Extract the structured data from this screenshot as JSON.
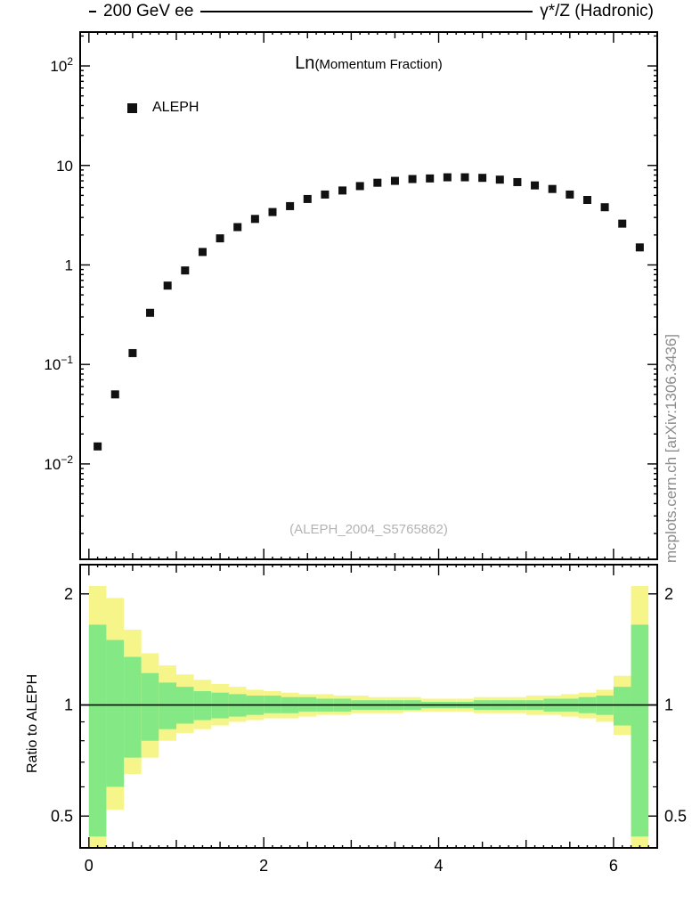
{
  "header": {
    "left": "200 GeV ee",
    "right": "γ*/Z (Hadronic)"
  },
  "plot": {
    "title_main": "Ln",
    "title_sub": "(Momentum Fraction)",
    "legend_label": "ALEPH",
    "watermark": "(ALEPH_2004_S5765862)",
    "side_text": "mcplots.cern.ch [arXiv:1306.3436]",
    "ratio_ylabel": "Ratio to ALEPH"
  },
  "colors": {
    "yellow": "#f6f58a",
    "green": "#84e984",
    "marker": "#111111",
    "axis": "#000000"
  },
  "chart_data": [
    {
      "type": "scatter",
      "title": "Ln(Momentum Fraction)",
      "legend": [
        "ALEPH"
      ],
      "yscale": "log",
      "xlim": [
        -0.1,
        6.5
      ],
      "ylim": [
        0.0011,
        219
      ],
      "xticks": [
        0,
        2,
        4,
        6
      ],
      "ytick_exponents": [
        -2,
        -1,
        0,
        1,
        2
      ],
      "x": [
        0.1,
        0.3,
        0.5,
        0.7,
        0.9,
        1.1,
        1.3,
        1.5,
        1.7,
        1.9,
        2.1,
        2.3,
        2.5,
        2.7,
        2.9,
        3.1,
        3.3,
        3.5,
        3.7,
        3.9,
        4.1,
        4.3,
        4.5,
        4.7,
        4.9,
        5.1,
        5.3,
        5.5,
        5.7,
        5.9,
        6.1,
        6.3
      ],
      "y": [
        0.015,
        0.05,
        0.13,
        0.33,
        0.62,
        0.88,
        1.35,
        1.85,
        2.4,
        2.9,
        3.4,
        3.9,
        4.6,
        5.1,
        5.6,
        6.2,
        6.7,
        7.0,
        7.3,
        7.4,
        7.6,
        7.6,
        7.5,
        7.2,
        6.8,
        6.3,
        5.8,
        5.1,
        4.5,
        3.8,
        2.6,
        1.5
      ]
    },
    {
      "type": "band",
      "ylabel": "Ratio to ALEPH",
      "yscale": "log",
      "ylim": [
        0.41,
        2.4
      ],
      "yticks": [
        0.5,
        1,
        2
      ],
      "ytick_labels": [
        "0.5",
        "1",
        "2"
      ],
      "minor_yticks": [
        0.6,
        0.7,
        0.8,
        0.9
      ],
      "reference_line": 1,
      "bin_edges": [
        0,
        0.2,
        0.4,
        0.6,
        0.8,
        1.0,
        1.2,
        1.4,
        1.6,
        1.8,
        2.0,
        2.2,
        2.4,
        2.6,
        2.8,
        3.0,
        3.2,
        3.4,
        3.6,
        3.8,
        4.0,
        4.2,
        4.4,
        4.6,
        4.8,
        5.0,
        5.2,
        5.4,
        5.6,
        5.8,
        6.0,
        6.2,
        6.4
      ],
      "yellow": [
        [
          0.4,
          2.1
        ],
        [
          0.52,
          1.95
        ],
        [
          0.65,
          1.6
        ],
        [
          0.72,
          1.38
        ],
        [
          0.8,
          1.28
        ],
        [
          0.84,
          1.21
        ],
        [
          0.86,
          1.17
        ],
        [
          0.88,
          1.14
        ],
        [
          0.9,
          1.12
        ],
        [
          0.91,
          1.1
        ],
        [
          0.92,
          1.09
        ],
        [
          0.92,
          1.08
        ],
        [
          0.93,
          1.07
        ],
        [
          0.94,
          1.07
        ],
        [
          0.94,
          1.06
        ],
        [
          0.95,
          1.06
        ],
        [
          0.95,
          1.05
        ],
        [
          0.95,
          1.05
        ],
        [
          0.96,
          1.05
        ],
        [
          0.96,
          1.04
        ],
        [
          0.96,
          1.04
        ],
        [
          0.96,
          1.04
        ],
        [
          0.95,
          1.05
        ],
        [
          0.95,
          1.05
        ],
        [
          0.95,
          1.05
        ],
        [
          0.94,
          1.06
        ],
        [
          0.94,
          1.06
        ],
        [
          0.93,
          1.07
        ],
        [
          0.92,
          1.08
        ],
        [
          0.9,
          1.1
        ],
        [
          0.83,
          1.2
        ],
        [
          0.4,
          2.1
        ]
      ],
      "green": [
        [
          0.44,
          1.65
        ],
        [
          0.6,
          1.5
        ],
        [
          0.72,
          1.35
        ],
        [
          0.8,
          1.22
        ],
        [
          0.86,
          1.15
        ],
        [
          0.89,
          1.12
        ],
        [
          0.91,
          1.09
        ],
        [
          0.92,
          1.08
        ],
        [
          0.93,
          1.07
        ],
        [
          0.94,
          1.06
        ],
        [
          0.95,
          1.06
        ],
        [
          0.95,
          1.05
        ],
        [
          0.96,
          1.05
        ],
        [
          0.96,
          1.04
        ],
        [
          0.96,
          1.04
        ],
        [
          0.97,
          1.03
        ],
        [
          0.97,
          1.03
        ],
        [
          0.97,
          1.03
        ],
        [
          0.97,
          1.03
        ],
        [
          0.98,
          1.02
        ],
        [
          0.98,
          1.02
        ],
        [
          0.98,
          1.02
        ],
        [
          0.97,
          1.03
        ],
        [
          0.97,
          1.03
        ],
        [
          0.97,
          1.03
        ],
        [
          0.97,
          1.03
        ],
        [
          0.96,
          1.04
        ],
        [
          0.96,
          1.04
        ],
        [
          0.95,
          1.05
        ],
        [
          0.94,
          1.06
        ],
        [
          0.88,
          1.12
        ],
        [
          0.44,
          1.65
        ]
      ]
    }
  ]
}
